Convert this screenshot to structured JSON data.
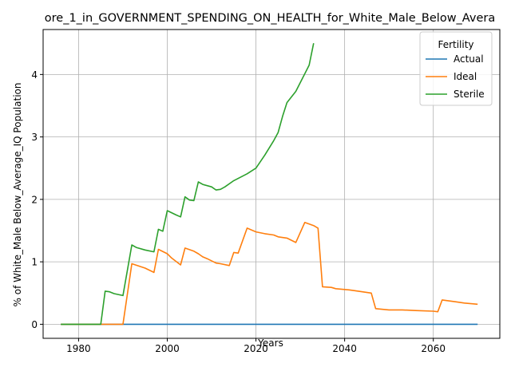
{
  "chart_data": {
    "type": "line",
    "title": "ore_1_in_GOVERNMENT_SPENDING_ON_HEALTH_for_White_Male_Below_Avera",
    "xlabel": "Years",
    "ylabel": "% of White_Male Below_Average_IQ Population",
    "xlim": [
      1972,
      2075
    ],
    "ylim": [
      -0.225,
      4.72
    ],
    "xticks": [
      1980,
      2000,
      2020,
      2040,
      2060
    ],
    "yticks": [
      0,
      1,
      2,
      3,
      4
    ],
    "grid": true,
    "legend": {
      "title": "Fertility",
      "placement": "top-right"
    },
    "series": [
      {
        "name": "Actual",
        "color": "#1f77b4",
        "points": [
          [
            1976,
            0
          ],
          [
            2070,
            0
          ]
        ]
      },
      {
        "name": "Ideal",
        "color": "#ff7f0e",
        "points": [
          [
            1976,
            0
          ],
          [
            1990,
            0
          ],
          [
            1992,
            0.97
          ],
          [
            1995,
            0.9
          ],
          [
            1997,
            0.83
          ],
          [
            1998,
            1.2
          ],
          [
            2000,
            1.13
          ],
          [
            2001,
            1.06
          ],
          [
            2003,
            0.95
          ],
          [
            2004,
            1.22
          ],
          [
            2006,
            1.17
          ],
          [
            2007,
            1.13
          ],
          [
            2008,
            1.08
          ],
          [
            2009,
            1.05
          ],
          [
            2011,
            0.98
          ],
          [
            2012,
            0.97
          ],
          [
            2014,
            0.94
          ],
          [
            2015,
            1.15
          ],
          [
            2016,
            1.14
          ],
          [
            2018,
            1.54
          ],
          [
            2020,
            1.48
          ],
          [
            2022,
            1.45
          ],
          [
            2024,
            1.43
          ],
          [
            2025,
            1.4
          ],
          [
            2027,
            1.38
          ],
          [
            2029,
            1.31
          ],
          [
            2031,
            1.63
          ],
          [
            2033,
            1.58
          ],
          [
            2034,
            1.54
          ],
          [
            2035,
            0.6
          ],
          [
            2037,
            0.59
          ],
          [
            2038,
            0.57
          ],
          [
            2041,
            0.55
          ],
          [
            2042,
            0.54
          ],
          [
            2046,
            0.5
          ],
          [
            2047,
            0.25
          ],
          [
            2050,
            0.23
          ],
          [
            2053,
            0.23
          ],
          [
            2056,
            0.22
          ],
          [
            2060,
            0.21
          ],
          [
            2061,
            0.2
          ],
          [
            2062,
            0.39
          ],
          [
            2065,
            0.36
          ],
          [
            2067,
            0.34
          ],
          [
            2070,
            0.32
          ]
        ]
      },
      {
        "name": "Sterile",
        "color": "#2ca02c",
        "points": [
          [
            1976,
            0
          ],
          [
            1985,
            0
          ],
          [
            1986,
            0.53
          ],
          [
            1987,
            0.52
          ],
          [
            1988,
            0.49
          ],
          [
            1990,
            0.46
          ],
          [
            1992,
            1.27
          ],
          [
            1993,
            1.23
          ],
          [
            1995,
            1.19
          ],
          [
            1997,
            1.16
          ],
          [
            1998,
            1.52
          ],
          [
            1999,
            1.49
          ],
          [
            2000,
            1.82
          ],
          [
            2002,
            1.75
          ],
          [
            2003,
            1.72
          ],
          [
            2004,
            2.04
          ],
          [
            2005,
            1.99
          ],
          [
            2006,
            1.98
          ],
          [
            2007,
            2.28
          ],
          [
            2008,
            2.24
          ],
          [
            2010,
            2.2
          ],
          [
            2011,
            2.15
          ],
          [
            2012,
            2.16
          ],
          [
            2013,
            2.2
          ],
          [
            2015,
            2.3
          ],
          [
            2018,
            2.41
          ],
          [
            2020,
            2.5
          ],
          [
            2022,
            2.71
          ],
          [
            2024,
            2.94
          ],
          [
            2025,
            3.07
          ],
          [
            2026,
            3.33
          ],
          [
            2027,
            3.55
          ],
          [
            2029,
            3.73
          ],
          [
            2030,
            3.87
          ],
          [
            2032,
            4.15
          ],
          [
            2033,
            4.5
          ]
        ]
      }
    ]
  }
}
